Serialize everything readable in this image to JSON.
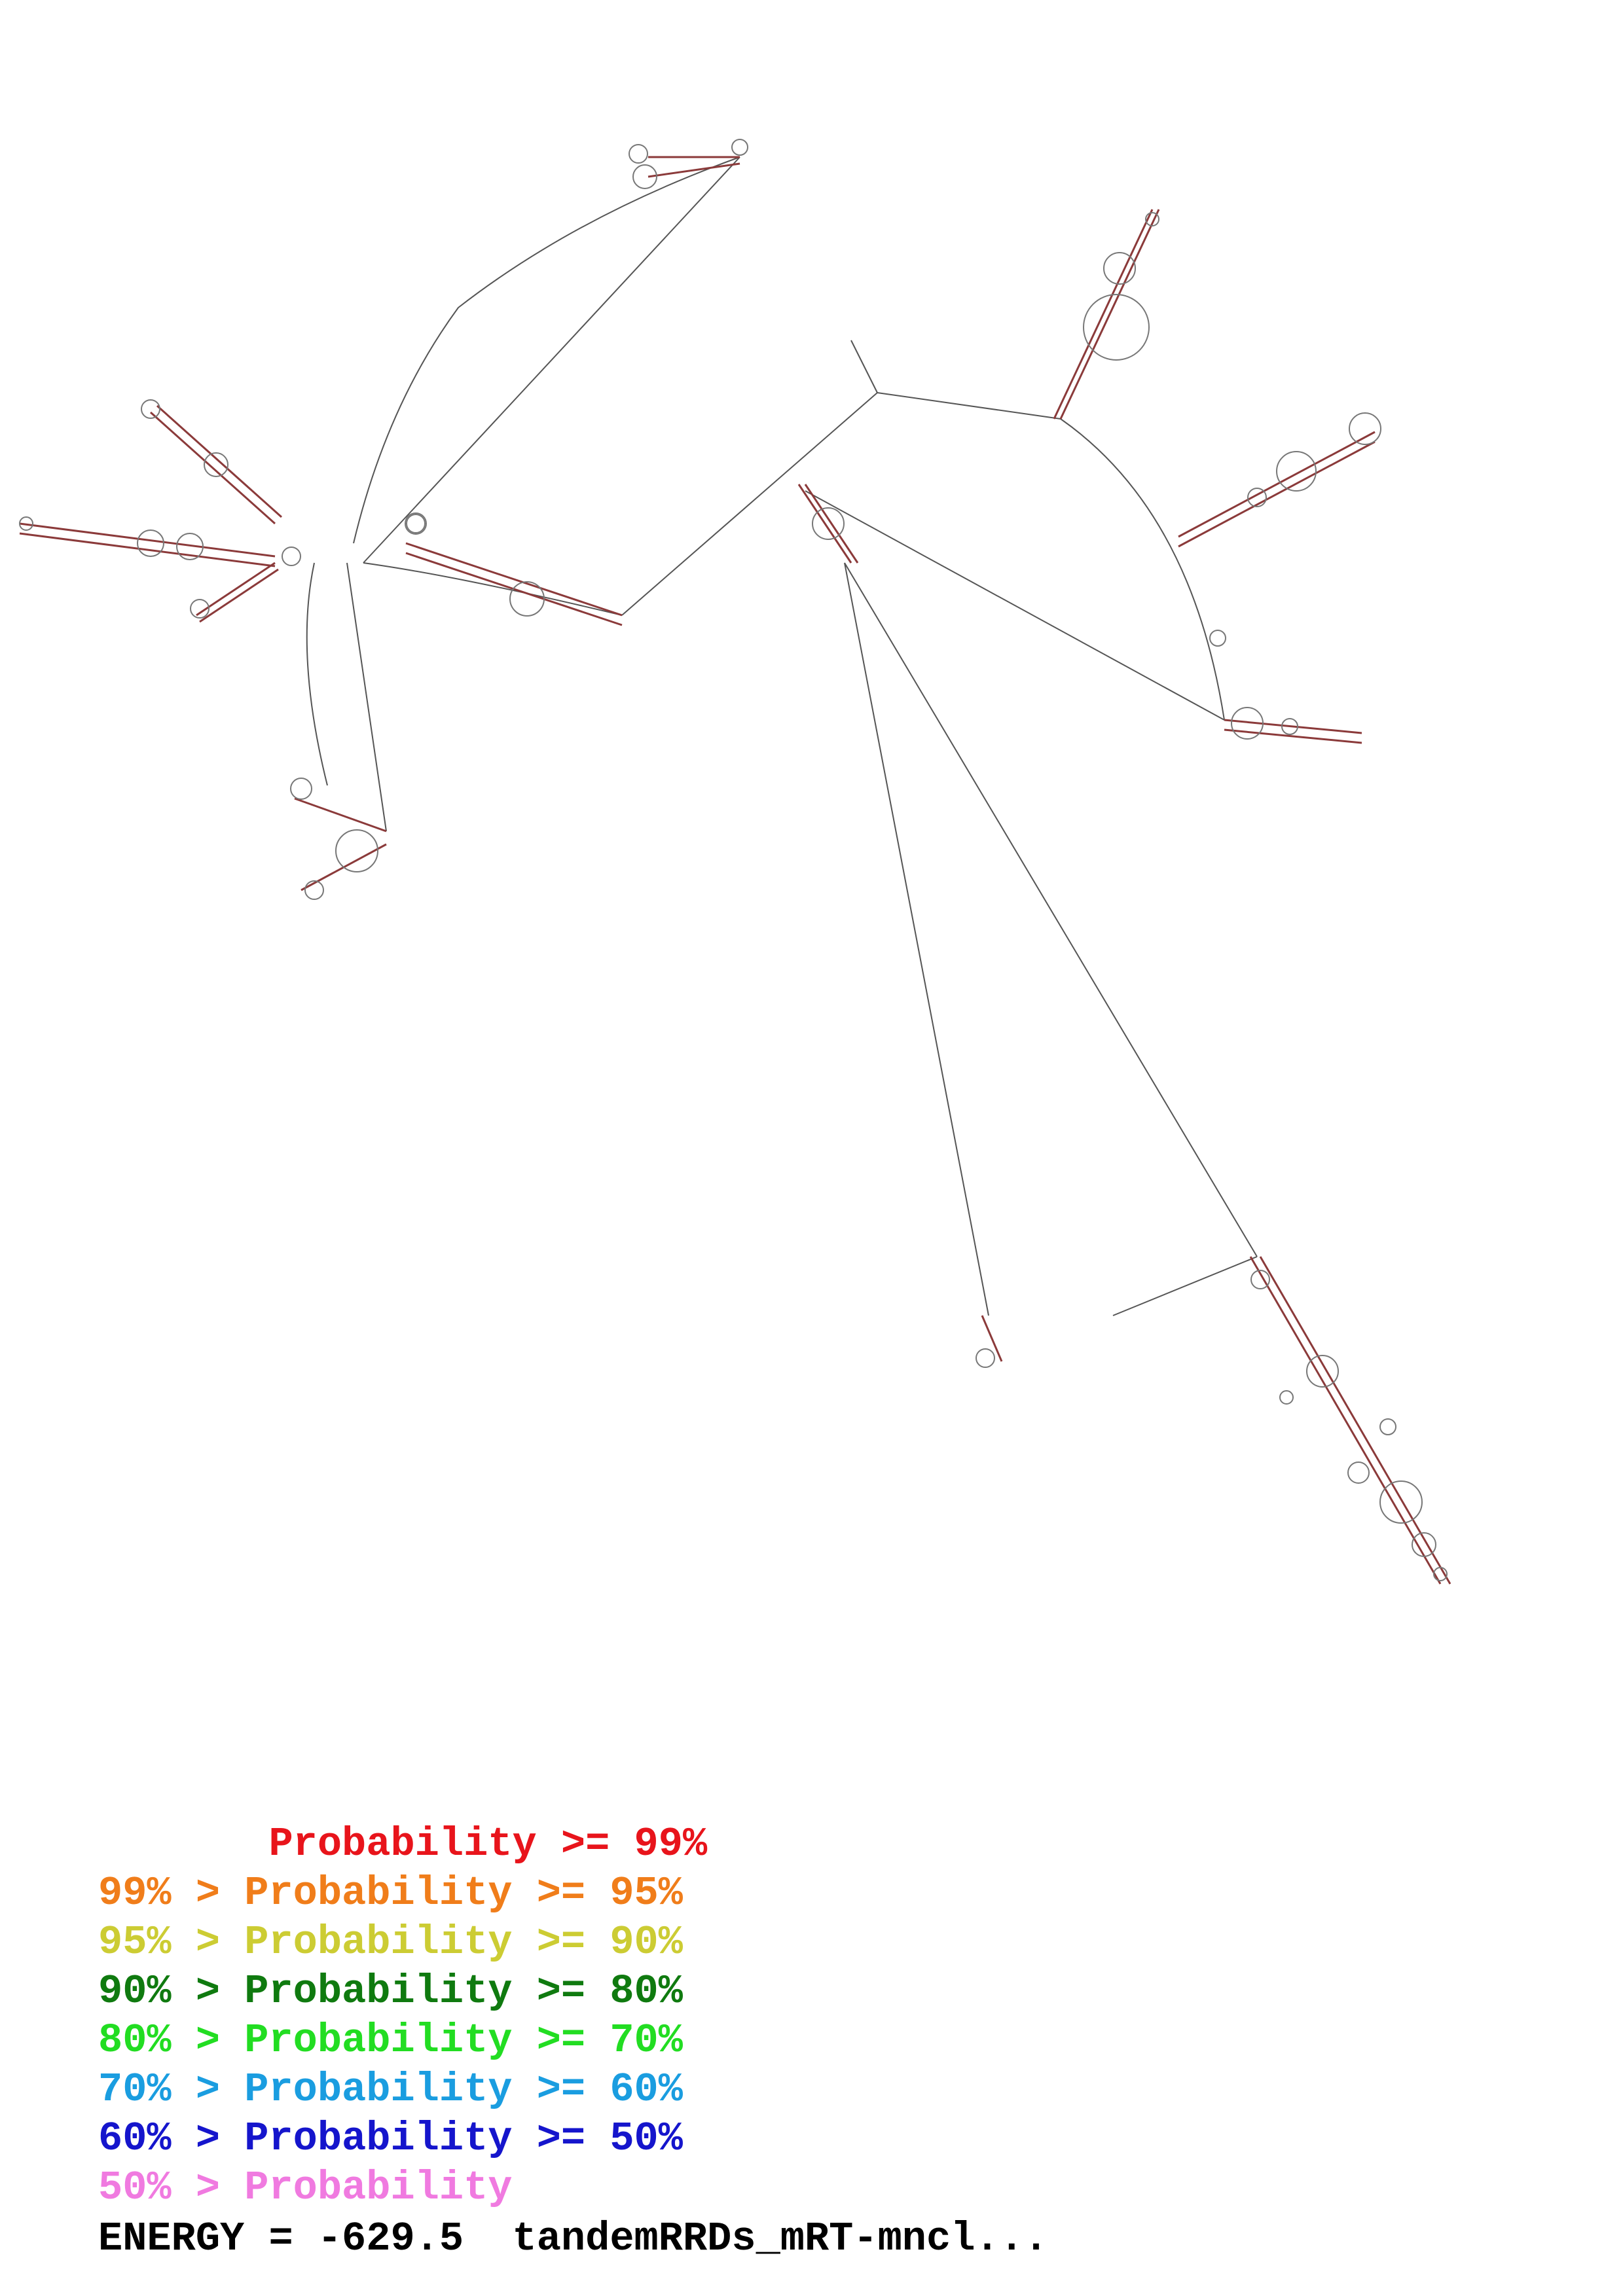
{
  "legend": {
    "rows": [
      {
        "text": "       Probability >= 99%",
        "color": "#e8141b"
      },
      {
        "text": "99% > Probability >= 95%",
        "color": "#f07d1a"
      },
      {
        "text": "95% > Probability >= 90%",
        "color": "#cccc33"
      },
      {
        "text": "90% > Probability >= 80%",
        "color": "#0f7a0f"
      },
      {
        "text": "80% > Probability >= 70%",
        "color": "#22dd22"
      },
      {
        "text": "70% > Probability >= 60%",
        "color": "#1a9de0"
      },
      {
        "text": "60% > Probability >= 50%",
        "color": "#1515cc"
      },
      {
        "text": "50% > Probability",
        "color": "#f07ae0"
      }
    ]
  },
  "footer": {
    "energy_text": "ENERGY = -629.5  tandemRRDs_mRT-mncl..."
  },
  "colors": {
    "backbone": "#555555",
    "base_pair": "#8b3a3a",
    "loop": "#777777"
  }
}
